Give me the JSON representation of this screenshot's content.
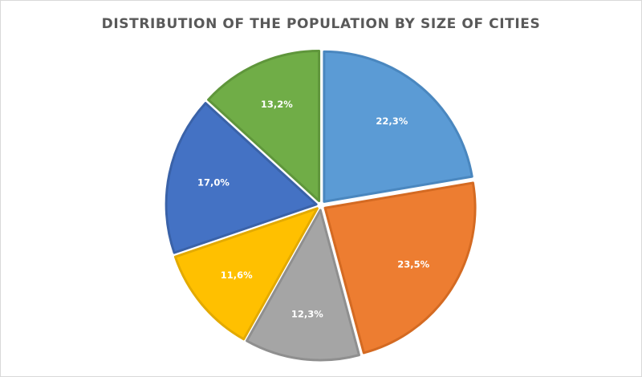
{
  "chart_data": {
    "type": "pie",
    "title": "DISTRIBUTION OF THE POPULATION BY SIZE OF CITIES",
    "values": [
      22.3,
      23.5,
      12.3,
      11.6,
      17.0,
      13.2
    ],
    "labels": [
      "22,3%",
      "23,5%",
      "12,3%",
      "11,6%",
      "17,0%",
      "13,2%"
    ],
    "colors": [
      "#5b9bd5",
      "#ed7d31",
      "#a5a5a5",
      "#ffc000",
      "#4472c4",
      "#70ad47"
    ],
    "border_colors": [
      "#4a87bf",
      "#d46a22",
      "#8f8f8f",
      "#e3aa00",
      "#3a62a8",
      "#5f963b"
    ],
    "start_angle_deg": 0,
    "direction": "clockwise",
    "exploded": true,
    "legend": "none"
  }
}
